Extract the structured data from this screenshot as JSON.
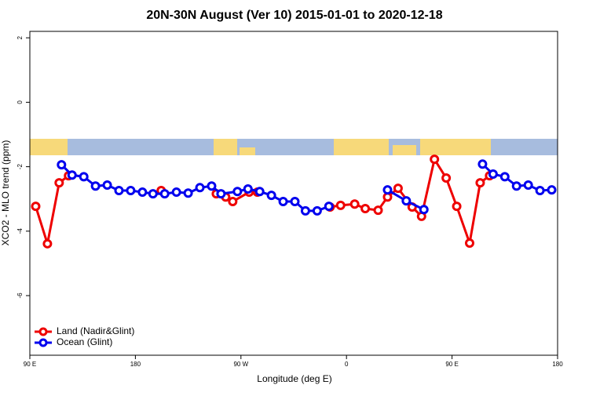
{
  "chart_data": {
    "type": "line",
    "title": "20N-30N August (Ver 10)   2015-01-01 to 2020-12-18",
    "x_label": "Longitude (deg E)",
    "y_label": "XCO2 - MLO trend (ppm)",
    "xlim": [
      90,
      540
    ],
    "xticks": [
      {
        "value": 90,
        "label": "90 E"
      },
      {
        "value": 180,
        "label": "180"
      },
      {
        "value": 270,
        "label": "90 W"
      },
      {
        "value": 360,
        "label": "0"
      },
      {
        "value": 450,
        "label": "90 E"
      },
      {
        "value": 540,
        "label": "180"
      }
    ],
    "ylim": [
      -7.85,
      2.2
    ],
    "yticks": [
      -6,
      -4,
      -2,
      0,
      2
    ],
    "legend": "bottom-left",
    "series": [
      {
        "name": "Land (Nadir&Glint)",
        "color": "#ee0000",
        "x": [
          95,
          105,
          115,
          123,
          160,
          202,
          230,
          249,
          257,
          263,
          277,
          284,
          320,
          346,
          355,
          367,
          376,
          387,
          395,
          404,
          416,
          424,
          435,
          445,
          454,
          465,
          474,
          482
        ],
        "values": [
          -3.23,
          -4.39,
          -2.5,
          -2.28,
          null,
          -2.74,
          null,
          -2.84,
          -2.94,
          -3.08,
          -2.79,
          -2.79,
          null,
          -3.25,
          -3.2,
          -3.16,
          -3.3,
          -3.35,
          -2.94,
          -2.67,
          -3.25,
          -3.54,
          -1.77,
          -2.35,
          -3.23,
          -4.37,
          -2.5,
          -2.28
        ]
      },
      {
        "name": "Ocean (Glint)",
        "color": "#0000ee",
        "x": [
          117,
          126,
          136,
          146,
          156,
          166,
          176,
          186,
          195,
          205,
          215,
          225,
          235,
          245,
          253,
          267,
          276,
          286,
          296,
          306,
          316,
          325,
          335,
          345,
          370,
          395,
          411,
          426,
          450,
          476,
          485,
          495,
          505,
          515,
          525,
          535
        ],
        "values": [
          -1.94,
          -2.26,
          -2.31,
          -2.6,
          -2.57,
          -2.74,
          -2.74,
          -2.79,
          -2.84,
          -2.84,
          -2.79,
          -2.82,
          -2.65,
          -2.6,
          -2.84,
          -2.77,
          -2.69,
          -2.77,
          -2.89,
          -3.08,
          -3.08,
          -3.37,
          -3.37,
          -3.23,
          null,
          -2.72,
          -3.06,
          -3.33,
          null,
          -1.92,
          -2.23,
          -2.31,
          -2.6,
          -2.57,
          -2.74,
          -2.72
        ]
      }
    ]
  }
}
